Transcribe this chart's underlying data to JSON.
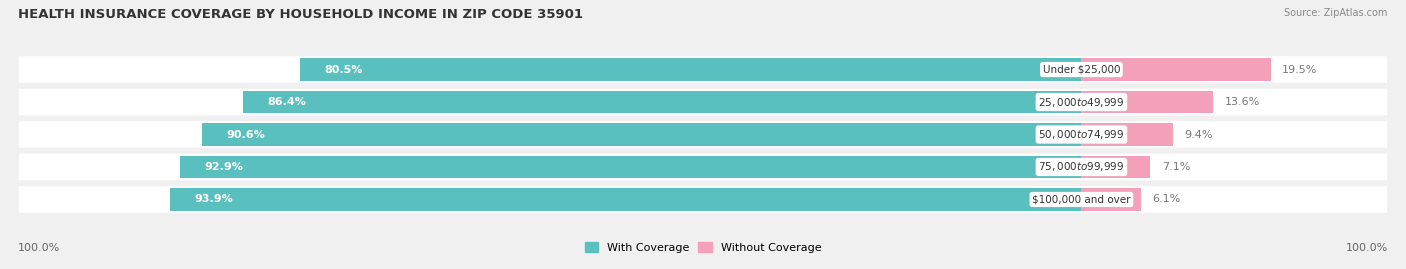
{
  "title": "HEALTH INSURANCE COVERAGE BY HOUSEHOLD INCOME IN ZIP CODE 35901",
  "source": "Source: ZipAtlas.com",
  "categories": [
    "Under $25,000",
    "$25,000 to $49,999",
    "$50,000 to $74,999",
    "$75,000 to $99,999",
    "$100,000 and over"
  ],
  "with_coverage": [
    80.5,
    86.4,
    90.6,
    92.9,
    93.9
  ],
  "without_coverage": [
    19.5,
    13.6,
    9.4,
    7.1,
    6.1
  ],
  "color_with": "#5abfbf",
  "color_without": "#f4a0bb",
  "bg_color": "#f0f0f0",
  "bar_bg": "#ffffff",
  "title_fontsize": 9.5,
  "label_fontsize": 8,
  "tick_fontsize": 8,
  "legend_label_with": "With Coverage",
  "legend_label_without": "Without Coverage",
  "left_tick": "100.0%",
  "right_tick": "100.0%",
  "xlim_left": -110,
  "xlim_right": 32,
  "bar_height": 0.68
}
